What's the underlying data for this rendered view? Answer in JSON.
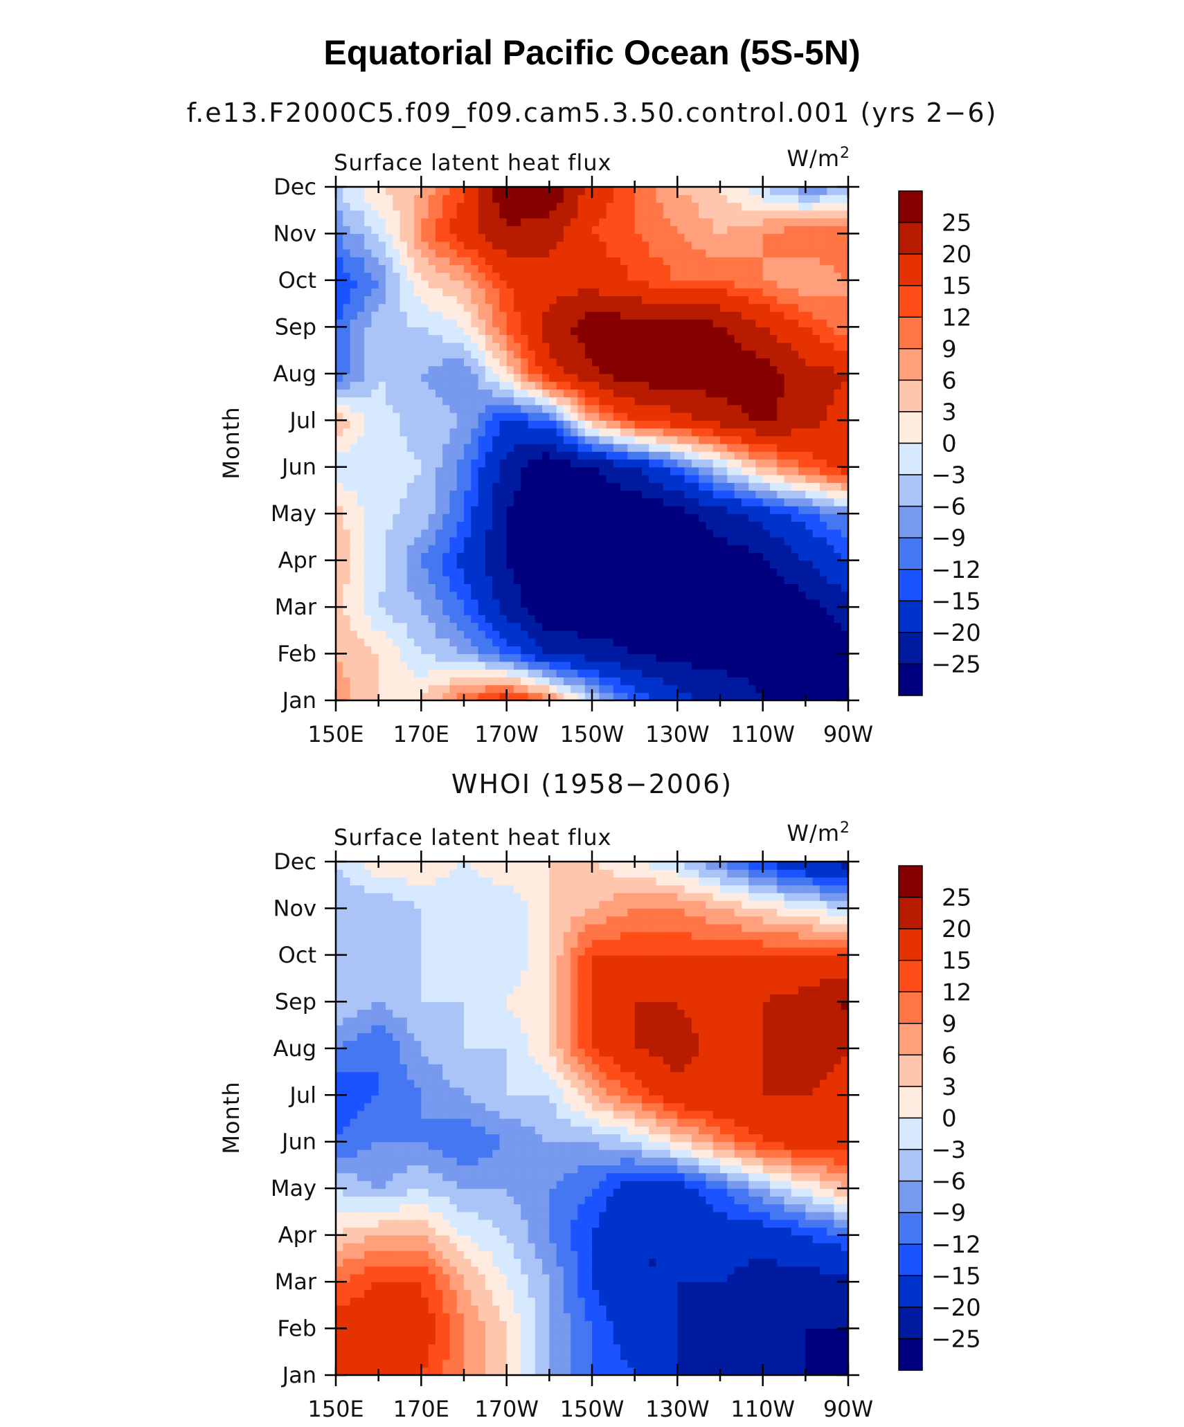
{
  "title": "Equatorial Pacific Ocean (5S-5N)",
  "chart_data": [
    {
      "type": "heatmap",
      "title": "f.e13.F2000C5.f09_f09.cam5.3.50.control.001 (yrs 2−6)",
      "left_label": "Surface latent heat flux",
      "units_base": "W/m",
      "units_sup": "2",
      "ylabel": "Month",
      "x": [
        "150E",
        "160E",
        "170E",
        "180",
        "170W",
        "160W",
        "150W",
        "140W",
        "130W",
        "120W",
        "110W",
        "100W",
        "90W"
      ],
      "xticklabels": [
        "150E",
        "170E",
        "170W",
        "150W",
        "130W",
        "110W",
        "90W"
      ],
      "y": [
        "Jan",
        "Feb",
        "Mar",
        "Apr",
        "May",
        "Jun",
        "Jul",
        "Aug",
        "Sep",
        "Oct",
        "Nov",
        "Dec"
      ],
      "z": [
        [
          8,
          3,
          3,
          12,
          18,
          10,
          -3,
          -12,
          -18,
          -22,
          -25,
          -28,
          -28
        ],
        [
          6,
          3,
          -3,
          -6,
          -12,
          -20,
          -22,
          -25,
          -27,
          -27,
          -26,
          -28,
          -28
        ],
        [
          4,
          -3,
          -6,
          -12,
          -22,
          -30,
          -30,
          -30,
          -30,
          -30,
          -30,
          -27,
          -22
        ],
        [
          6,
          -2,
          -9,
          -16,
          -25,
          -30,
          -30,
          -30,
          -30,
          -28,
          -26,
          -20,
          -15
        ],
        [
          4,
          -2,
          -4,
          -12,
          -25,
          -30,
          -30,
          -30,
          -27,
          -22,
          -18,
          -13,
          -8
        ],
        [
          -2,
          -2,
          -3,
          -10,
          -22,
          -30,
          -25,
          -20,
          -12,
          -3,
          6,
          12,
          18
        ],
        [
          6,
          -2,
          -4,
          -6,
          -16,
          -12,
          6,
          15,
          18,
          22,
          26,
          22,
          18
        ],
        [
          -12,
          -3,
          -6,
          -9,
          3,
          18,
          24,
          28,
          28,
          28,
          28,
          22,
          20
        ],
        [
          -12,
          -4,
          -3,
          0,
          12,
          22,
          28,
          28,
          28,
          26,
          20,
          15,
          9
        ],
        [
          -15,
          -9,
          3,
          6,
          15,
          18,
          18,
          15,
          12,
          12,
          9,
          6,
          9
        ],
        [
          -9,
          -3,
          9,
          18,
          24,
          22,
          15,
          12,
          9,
          6,
          9,
          12,
          12
        ],
        [
          -3,
          3,
          6,
          15,
          30,
          30,
          18,
          12,
          6,
          3,
          -3,
          -9,
          -6
        ]
      ],
      "colorbar": {
        "levels": [
          "25",
          "20",
          "15",
          "12",
          "9",
          "6",
          "3",
          "0",
          "−3",
          "−6",
          "−9",
          "−12",
          "−15",
          "−20",
          "−25"
        ],
        "thresholds": [
          -25,
          -20,
          -15,
          -12,
          -9,
          -6,
          -3,
          0,
          3,
          6,
          9,
          12,
          15,
          20,
          25
        ],
        "colors": [
          "#00007f",
          "#001aa0",
          "#0033cc",
          "#1a53ff",
          "#4577f2",
          "#7799ee",
          "#aac4f8",
          "#d7e9ff",
          "#ffebe0",
          "#ffc6ae",
          "#ff9f7b",
          "#ff7545",
          "#ff4d1a",
          "#e63200",
          "#b81c00",
          "#860000"
        ]
      }
    },
    {
      "type": "heatmap",
      "title": "WHOI (1958−2006)",
      "left_label": "Surface latent heat flux",
      "units_base": "W/m",
      "units_sup": "2",
      "ylabel": "Month",
      "x": [
        "150E",
        "160E",
        "170E",
        "180",
        "170W",
        "160W",
        "150W",
        "140W",
        "130W",
        "120W",
        "110W",
        "100W",
        "90W"
      ],
      "xticklabels": [
        "150E",
        "170E",
        "170W",
        "150W",
        "130W",
        "110W",
        "90W"
      ],
      "y": [
        "Jan",
        "Feb",
        "Mar",
        "Apr",
        "May",
        "Jun",
        "Jul",
        "Aug",
        "Sep",
        "Oct",
        "Nov",
        "Dec"
      ],
      "z": [
        [
          15,
          15,
          15,
          9,
          3,
          -6,
          -12,
          -15,
          -20,
          -22,
          -25,
          -25,
          -28
        ],
        [
          18,
          18,
          18,
          9,
          3,
          -6,
          -12,
          -18,
          -20,
          -22,
          -25,
          -25,
          -25
        ],
        [
          12,
          15,
          15,
          6,
          0,
          -6,
          -15,
          -20,
          -20,
          -20,
          -22,
          -22,
          -22
        ],
        [
          3,
          6,
          6,
          0,
          -3,
          -9,
          -15,
          -20,
          -20,
          -18,
          -18,
          -15,
          -12
        ],
        [
          -3,
          -6,
          -3,
          -6,
          -6,
          -9,
          -12,
          -18,
          -18,
          -12,
          -6,
          0,
          6
        ],
        [
          -12,
          -9,
          -9,
          -12,
          -9,
          -6,
          -6,
          -3,
          3,
          9,
          15,
          18,
          18
        ],
        [
          -15,
          -12,
          -9,
          -6,
          -3,
          -3,
          6,
          12,
          18,
          20,
          20,
          20,
          18
        ],
        [
          -9,
          -12,
          -6,
          -3,
          -3,
          3,
          15,
          20,
          22,
          18,
          20,
          22,
          20
        ],
        [
          -3,
          -6,
          -3,
          -3,
          0,
          3,
          15,
          20,
          20,
          18,
          20,
          22,
          26
        ],
        [
          -3,
          -6,
          -3,
          -3,
          -3,
          3,
          15,
          15,
          15,
          15,
          15,
          15,
          15
        ],
        [
          -6,
          -6,
          -3,
          -3,
          -3,
          3,
          6,
          9,
          9,
          6,
          3,
          0,
          -3
        ],
        [
          -3,
          3,
          3,
          0,
          3,
          3,
          3,
          0,
          -3,
          -9,
          -15,
          -20,
          -22
        ]
      ],
      "colorbar": {
        "levels": [
          "25",
          "20",
          "15",
          "12",
          "9",
          "6",
          "3",
          "0",
          "−3",
          "−6",
          "−9",
          "−12",
          "−15",
          "−20",
          "−25"
        ],
        "thresholds": [
          -25,
          -20,
          -15,
          -12,
          -9,
          -6,
          -3,
          0,
          3,
          6,
          9,
          12,
          15,
          20,
          25
        ],
        "colors": [
          "#00007f",
          "#001aa0",
          "#0033cc",
          "#1a53ff",
          "#4577f2",
          "#7799ee",
          "#aac4f8",
          "#d7e9ff",
          "#ffebe0",
          "#ffc6ae",
          "#ff9f7b",
          "#ff7545",
          "#ff4d1a",
          "#e63200",
          "#b81c00",
          "#860000"
        ]
      }
    }
  ]
}
